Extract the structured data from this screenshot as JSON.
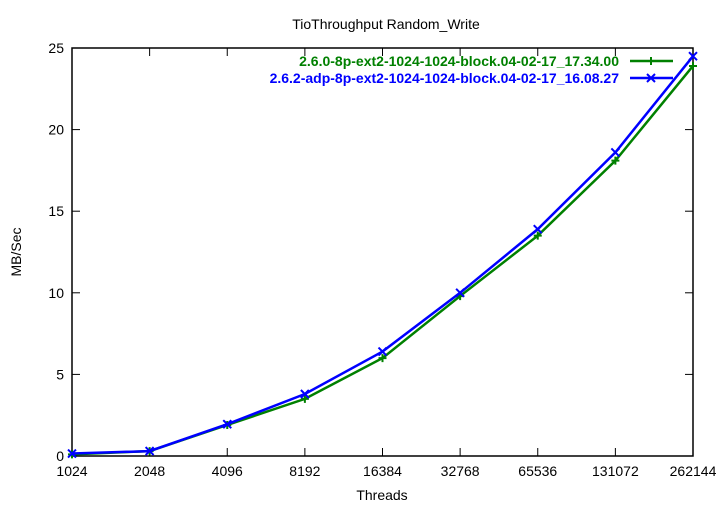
{
  "chart_data": {
    "type": "line",
    "title": "TioThroughput Random_Write",
    "xlabel": "Threads",
    "ylabel": "MB/Sec",
    "x_scale": "log2",
    "categories": [
      "1024",
      "2048",
      "4096",
      "8192",
      "16384",
      "32768",
      "65536",
      "131072",
      "262144"
    ],
    "ylim": [
      0,
      25
    ],
    "yticks": [
      0,
      5,
      10,
      15,
      20,
      25
    ],
    "grid": false,
    "legend": "top-right",
    "series": [
      {
        "name": "2.6.0-8p-ext2-1024-1024-block.04-02-17_17.34.00",
        "color": "#008000",
        "marker": "plus",
        "values": [
          0.1,
          0.3,
          1.9,
          3.5,
          6.0,
          9.8,
          13.5,
          18.1,
          23.9
        ]
      },
      {
        "name": "2.6.2-adp-8p-ext2-1024-1024-block.04-02-17_16.08.27",
        "color": "#0000ff",
        "marker": "cross",
        "values": [
          0.15,
          0.3,
          1.95,
          3.8,
          6.4,
          10.0,
          13.9,
          18.6,
          24.5
        ]
      }
    ]
  }
}
